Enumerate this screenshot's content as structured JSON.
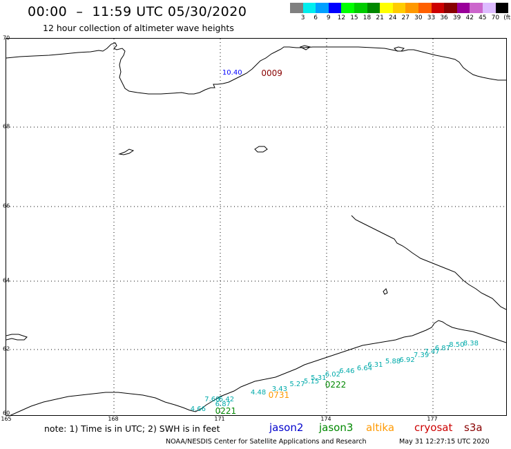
{
  "title": "00:00  –  11:59 UTC 05/30/2020",
  "subtitle": "12 hour collection of altimeter wave heights",
  "legend": {
    "colors": [
      "#808080",
      "#00eeee",
      "#00a0ff",
      "#0000ff",
      "#00ff00",
      "#00cc00",
      "#008800",
      "#ffff00",
      "#ffcc00",
      "#ff9900",
      "#ff6000",
      "#cc0000",
      "#880000",
      "#990099",
      "#cc66cc",
      "#ddbbff",
      "#000000"
    ],
    "labels": [
      "3",
      "6",
      "9",
      "12",
      "15",
      "18",
      "21",
      "24",
      "27",
      "30",
      "33",
      "36",
      "39",
      "42",
      "45",
      "70",
      "(ft)"
    ]
  },
  "map": {
    "lat_labels": [
      "70",
      "68",
      "66",
      "64",
      "62",
      "60"
    ],
    "lon_labels": [
      "165",
      "168",
      "171",
      "174",
      "177"
    ]
  },
  "chart_data": {
    "type": "map",
    "projection": "lat/lon",
    "lat_range": [
      60,
      70
    ],
    "lon_range": [
      165,
      179
    ],
    "grid": true,
    "track_labels": [
      {
        "text": "0009",
        "color": "#880000",
        "lon": 172.2,
        "lat": 69.2
      },
      {
        "text": "0731",
        "color": "#ff9900",
        "lon": 172.4,
        "lat": 60.6
      },
      {
        "text": "0222",
        "color": "#008800",
        "lon": 174.0,
        "lat": 60.9
      },
      {
        "text": "0221",
        "color": "#008800",
        "lon": 170.9,
        "lat": 60.1
      }
    ],
    "points": [
      {
        "value": "10.40",
        "color": "#0000ff",
        "lon": 171.1,
        "lat": 69.2
      },
      {
        "value": "4.66",
        "color": "#00aaaa",
        "lon": 170.2,
        "lat": 60.15
      },
      {
        "value": "6.87",
        "color": "#00aaaa",
        "lon": 170.9,
        "lat": 60.3
      },
      {
        "value": "7.68",
        "color": "#00aaaa",
        "lon": 170.6,
        "lat": 60.45
      },
      {
        "value": "6.42",
        "color": "#00aaaa",
        "lon": 171.0,
        "lat": 60.45
      },
      {
        "value": "4.48",
        "color": "#00aaaa",
        "lon": 171.9,
        "lat": 60.65
      },
      {
        "value": "3.43",
        "color": "#00aaaa",
        "lon": 172.5,
        "lat": 60.75
      },
      {
        "value": "5.27",
        "color": "#00aaaa",
        "lon": 173.0,
        "lat": 60.9
      },
      {
        "value": "5.15",
        "color": "#00aaaa",
        "lon": 173.4,
        "lat": 61.0
      },
      {
        "value": "5.31",
        "color": "#00aaaa",
        "lon": 173.6,
        "lat": 61.1
      },
      {
        "value": "6.02",
        "color": "#00aaaa",
        "lon": 174.0,
        "lat": 61.2
      },
      {
        "value": "6.46",
        "color": "#00aaaa",
        "lon": 174.4,
        "lat": 61.3
      },
      {
        "value": "6.64",
        "color": "#00aaaa",
        "lon": 174.9,
        "lat": 61.4
      },
      {
        "value": "6.31",
        "color": "#00aaaa",
        "lon": 175.2,
        "lat": 61.5
      },
      {
        "value": "5.88",
        "color": "#00aaaa",
        "lon": 175.7,
        "lat": 61.6
      },
      {
        "value": "6.92",
        "color": "#00aaaa",
        "lon": 176.1,
        "lat": 61.65
      },
      {
        "value": "7.39",
        "color": "#00aaaa",
        "lon": 176.5,
        "lat": 61.8
      },
      {
        "value": "7.47",
        "color": "#00aaaa",
        "lon": 176.8,
        "lat": 61.9
      },
      {
        "value": "6.87",
        "color": "#00aaaa",
        "lon": 177.1,
        "lat": 62.0
      },
      {
        "value": "8.50",
        "color": "#00aaaa",
        "lon": 177.5,
        "lat": 62.1
      },
      {
        "value": "8.38",
        "color": "#00aaaa",
        "lon": 177.9,
        "lat": 62.15
      }
    ]
  },
  "footer": {
    "note": "note: 1) Time is in UTC; 2) SWH is in feet",
    "satellites": [
      {
        "name": "jason2",
        "color": "#0000cc"
      },
      {
        "name": "jason3",
        "color": "#008800"
      },
      {
        "name": "altika",
        "color": "#ff9900"
      },
      {
        "name": "cryosat",
        "color": "#cc0000"
      },
      {
        "name": "s3a",
        "color": "#880000"
      }
    ],
    "credit": "NOAA/NESDIS Center for Satellite Applications and Research",
    "timestamp": "May 31 12:27:15 UTC 2020"
  }
}
